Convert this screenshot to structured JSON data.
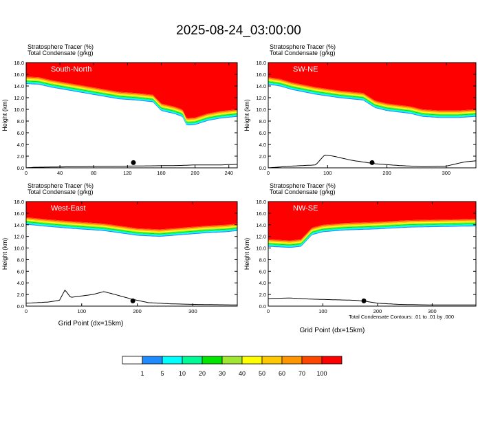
{
  "title": "2025-08-24_03:00:00",
  "panel_header": {
    "tracer_label": "Stratosphere Tracer",
    "tracer_unit": "(%)",
    "condensate_label": "Total Condensate",
    "condensate_unit": "(g/kg)"
  },
  "y_axis_label": "Height (km)",
  "x_axis_label": "Grid Point (dx=15km)",
  "footnote": "Total Condensate Contours: .01 to .01 by .000",
  "colorbar": {
    "colors": [
      "#ffffff",
      "#1e8cff",
      "#00ffff",
      "#00fa96",
      "#00e600",
      "#a0e632",
      "#ffff00",
      "#ffc800",
      "#ff9600",
      "#ff4600",
      "#ff0000"
    ],
    "labels": [
      "1",
      "5",
      "10",
      "20",
      "30",
      "40",
      "50",
      "60",
      "70",
      "100"
    ]
  },
  "chart_data": [
    {
      "type": "heatmap",
      "panel_label": "South-North",
      "x_range": [
        0,
        250
      ],
      "y_range": [
        0,
        18
      ],
      "x_ticks": [
        "0",
        "40",
        "80",
        "120",
        "160",
        "200",
        "240"
      ],
      "x_tick_values": [
        0,
        40,
        80,
        120,
        160,
        200,
        240
      ],
      "y_ticks": [
        "0.0",
        "2.0",
        "4.0",
        "6.0",
        "8.0",
        "10.0",
        "12.0",
        "14.0",
        "16.0",
        "18.0"
      ],
      "tropopause_km": [
        [
          0,
          15.6
        ],
        [
          15,
          15.5
        ],
        [
          30,
          15.0
        ],
        [
          50,
          14.5
        ],
        [
          70,
          14.0
        ],
        [
          90,
          13.5
        ],
        [
          110,
          13.0
        ],
        [
          130,
          12.8
        ],
        [
          150,
          12.5
        ],
        [
          160,
          11.0
        ],
        [
          175,
          10.5
        ],
        [
          185,
          10.0
        ],
        [
          190,
          8.5
        ],
        [
          200,
          8.6
        ],
        [
          215,
          9.3
        ],
        [
          230,
          9.7
        ],
        [
          250,
          10.0
        ]
      ],
      "terrain_km": [
        [
          0,
          0
        ],
        [
          10,
          0.1
        ],
        [
          60,
          0.2
        ],
        [
          120,
          0.3
        ],
        [
          180,
          0.4
        ],
        [
          200,
          0.5
        ],
        [
          230,
          0.5
        ],
        [
          250,
          0.6
        ]
      ],
      "marker": {
        "x": 127,
        "y": 0.9
      }
    },
    {
      "type": "heatmap",
      "panel_label": "SW-NE",
      "x_range": [
        0,
        350
      ],
      "y_range": [
        0,
        18
      ],
      "x_ticks": [
        "0",
        "100",
        "200",
        "300"
      ],
      "x_tick_values": [
        0,
        100,
        200,
        300
      ],
      "y_ticks": [
        "0.0",
        "2.0",
        "4.0",
        "6.0",
        "8.0",
        "10.0",
        "12.0",
        "14.0",
        "16.0",
        "18.0"
      ],
      "tropopause_km": [
        [
          0,
          15.5
        ],
        [
          20,
          15.2
        ],
        [
          40,
          14.6
        ],
        [
          80,
          13.8
        ],
        [
          120,
          13.2
        ],
        [
          160,
          12.8
        ],
        [
          180,
          11.5
        ],
        [
          200,
          11.0
        ],
        [
          240,
          10.5
        ],
        [
          260,
          10.0
        ],
        [
          290,
          9.8
        ],
        [
          320,
          9.8
        ],
        [
          350,
          10.0
        ]
      ],
      "terrain_km": [
        [
          0,
          0
        ],
        [
          40,
          0.3
        ],
        [
          80,
          0.5
        ],
        [
          95,
          2.2
        ],
        [
          110,
          2.0
        ],
        [
          140,
          1.3
        ],
        [
          180,
          0.7
        ],
        [
          220,
          0.4
        ],
        [
          260,
          0.2
        ],
        [
          300,
          0.3
        ],
        [
          330,
          1.0
        ],
        [
          350,
          1.2
        ]
      ],
      "marker": {
        "x": 175,
        "y": 0.9
      }
    },
    {
      "type": "heatmap",
      "panel_label": "West-East",
      "x_range": [
        0,
        380
      ],
      "y_range": [
        0,
        18
      ],
      "x_ticks": [
        "0",
        "100",
        "200",
        "300"
      ],
      "x_tick_values": [
        0,
        100,
        200,
        300
      ],
      "y_ticks": [
        "0.0",
        "2.0",
        "4.0",
        "6.0",
        "8.0",
        "10.0",
        "12.0",
        "14.0",
        "16.0",
        "18.0"
      ],
      "tropopause_km": [
        [
          0,
          15.3
        ],
        [
          30,
          15.0
        ],
        [
          80,
          14.6
        ],
        [
          140,
          14.2
        ],
        [
          200,
          13.4
        ],
        [
          240,
          13.2
        ],
        [
          280,
          13.5
        ],
        [
          320,
          13.8
        ],
        [
          360,
          14.0
        ],
        [
          380,
          14.2
        ]
      ],
      "terrain_km": [
        [
          0,
          0.5
        ],
        [
          40,
          0.7
        ],
        [
          60,
          1.0
        ],
        [
          70,
          2.8
        ],
        [
          80,
          1.5
        ],
        [
          120,
          2.0
        ],
        [
          140,
          2.5
        ],
        [
          160,
          2.0
        ],
        [
          190,
          1.2
        ],
        [
          220,
          0.6
        ],
        [
          260,
          0.4
        ],
        [
          300,
          0.3
        ],
        [
          380,
          0.2
        ]
      ],
      "marker": {
        "x": 192,
        "y": 0.9
      }
    },
    {
      "type": "heatmap",
      "panel_label": "NW-SE",
      "x_range": [
        0,
        380
      ],
      "y_range": [
        0,
        18
      ],
      "x_ticks": [
        "0",
        "100",
        "200",
        "300"
      ],
      "x_tick_values": [
        0,
        100,
        200,
        300
      ],
      "y_ticks": [
        "0.0",
        "2.0",
        "4.0",
        "6.0",
        "8.0",
        "10.0",
        "12.0",
        "14.0",
        "16.0",
        "18.0"
      ],
      "tropopause_km": [
        [
          0,
          11.5
        ],
        [
          40,
          11.3
        ],
        [
          60,
          11.5
        ],
        [
          80,
          13.5
        ],
        [
          100,
          14.0
        ],
        [
          140,
          14.3
        ],
        [
          200,
          14.5
        ],
        [
          260,
          14.8
        ],
        [
          320,
          14.9
        ],
        [
          380,
          15.0
        ]
      ],
      "terrain_km": [
        [
          0,
          1.3
        ],
        [
          40,
          1.4
        ],
        [
          80,
          1.2
        ],
        [
          120,
          1.1
        ],
        [
          160,
          1.0
        ],
        [
          180,
          0.8
        ],
        [
          200,
          0.5
        ],
        [
          240,
          0.3
        ],
        [
          300,
          0.2
        ],
        [
          380,
          0.2
        ]
      ],
      "marker": {
        "x": 175,
        "y": 0.9
      }
    }
  ]
}
